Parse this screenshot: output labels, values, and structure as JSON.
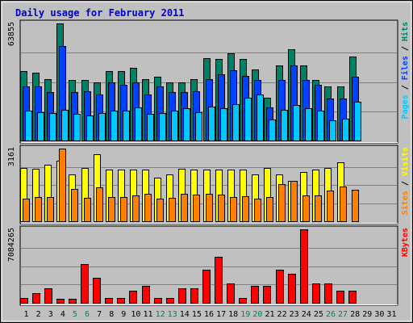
{
  "title": "Daily usage for February 2011",
  "colors": {
    "background": "#c0c0c0",
    "frame": "#a0a0a0",
    "title": "#0000cc",
    "grid": "#808080",
    "hits": "#008066",
    "files": "#0040ff",
    "pages": "#00c8ff",
    "visits": "#ffff00",
    "sites": "#ff8000",
    "kbytes": "#ff0000",
    "weekday_label": "#000000",
    "weekend_label": "#008066"
  },
  "chart_data": [
    {
      "type": "bar",
      "name": "hits-files-pages",
      "ylabel_max": "63855",
      "ylim": [
        0,
        63855
      ],
      "grid": true,
      "legend": {
        "parts": [
          {
            "key": "pages",
            "text": "Pages"
          },
          {
            "key": "sep",
            "text": " / "
          },
          {
            "key": "files",
            "text": "Files"
          },
          {
            "key": "sep",
            "text": " / "
          },
          {
            "key": "hits",
            "text": "Hits"
          }
        ]
      },
      "series": [
        {
          "key": "hits",
          "name": "Hits",
          "values": [
            37800,
            37200,
            33600,
            63855,
            33000,
            33000,
            31800,
            38000,
            38000,
            39600,
            33600,
            34800,
            31800,
            31800,
            33600,
            45000,
            44400,
            47400,
            44400,
            38700,
            23400,
            40800,
            49800,
            40800,
            33000,
            29400,
            29400,
            45600,
            0,
            0,
            0
          ]
        },
        {
          "key": "files",
          "name": "Files",
          "values": [
            29400,
            29400,
            26400,
            51600,
            26400,
            27000,
            25200,
            31800,
            30600,
            31800,
            25200,
            29400,
            26400,
            26400,
            27000,
            33600,
            36000,
            38400,
            35400,
            33000,
            18000,
            33000,
            40800,
            33000,
            30600,
            22800,
            22800,
            34800,
            0,
            0,
            0
          ]
        },
        {
          "key": "pages",
          "name": "Pages",
          "values": [
            16200,
            15600,
            15000,
            16800,
            14400,
            13800,
            15000,
            16200,
            16200,
            18000,
            14400,
            15000,
            16200,
            17400,
            15600,
            18600,
            17400,
            19800,
            23400,
            25200,
            11400,
            16800,
            19200,
            17400,
            16200,
            10800,
            12000,
            21000,
            0,
            0,
            0
          ]
        }
      ]
    },
    {
      "type": "bar",
      "name": "visits-sites",
      "ylabel_max": "3161",
      "ylim": [
        0,
        3161
      ],
      "grid": true,
      "legend": {
        "parts": [
          {
            "key": "sites",
            "text": "Sites"
          },
          {
            "key": "sep",
            "text": " / "
          },
          {
            "key": "visits",
            "text": "Visits"
          }
        ]
      },
      "series": [
        {
          "key": "visits",
          "name": "Visits",
          "values": [
            2320,
            2280,
            2450,
            2650,
            2030,
            2320,
            2930,
            2250,
            2250,
            2250,
            2250,
            1900,
            2030,
            2280,
            2250,
            2250,
            2250,
            2250,
            2250,
            2030,
            2320,
            2030,
            1760,
            2160,
            2250,
            2320,
            2550,
            0,
            0,
            0,
            0
          ]
        },
        {
          "key": "sites",
          "name": "Sites",
          "values": [
            980,
            1050,
            1050,
            3161,
            1420,
            1020,
            1490,
            1060,
            1060,
            1110,
            1200,
            980,
            1020,
            1200,
            1150,
            1200,
            1150,
            1060,
            1100,
            980,
            1060,
            1600,
            1740,
            1130,
            1130,
            1340,
            1520,
            1370,
            0,
            0,
            0
          ]
        }
      ]
    },
    {
      "type": "bar",
      "name": "kbytes",
      "ylabel_max": "7084265",
      "ylim": [
        0,
        7084265
      ],
      "grid": true,
      "legend": {
        "parts": [
          {
            "key": "kbytes",
            "text": "KBytes"
          }
        ]
      },
      "series": [
        {
          "key": "kbytes",
          "name": "KBytes",
          "values": [
            480000,
            970000,
            1380000,
            410000,
            410000,
            3730000,
            2430000,
            480000,
            480000,
            1160000,
            1660000,
            480000,
            480000,
            1400000,
            1380000,
            3200000,
            4450000,
            1880000,
            480000,
            1660000,
            1660000,
            3200000,
            2840000,
            7084265,
            1880000,
            1880000,
            1160000,
            1160000,
            0,
            0,
            0
          ]
        }
      ]
    }
  ],
  "days": [
    "1",
    "2",
    "3",
    "4",
    "5",
    "6",
    "7",
    "8",
    "9",
    "10",
    "11",
    "12",
    "13",
    "14",
    "15",
    "16",
    "17",
    "18",
    "19",
    "20",
    "21",
    "22",
    "23",
    "24",
    "25",
    "26",
    "27",
    "28",
    "29",
    "30",
    "31"
  ],
  "weekend_days": [
    "5",
    "6",
    "12",
    "13",
    "19",
    "20",
    "26",
    "27"
  ]
}
